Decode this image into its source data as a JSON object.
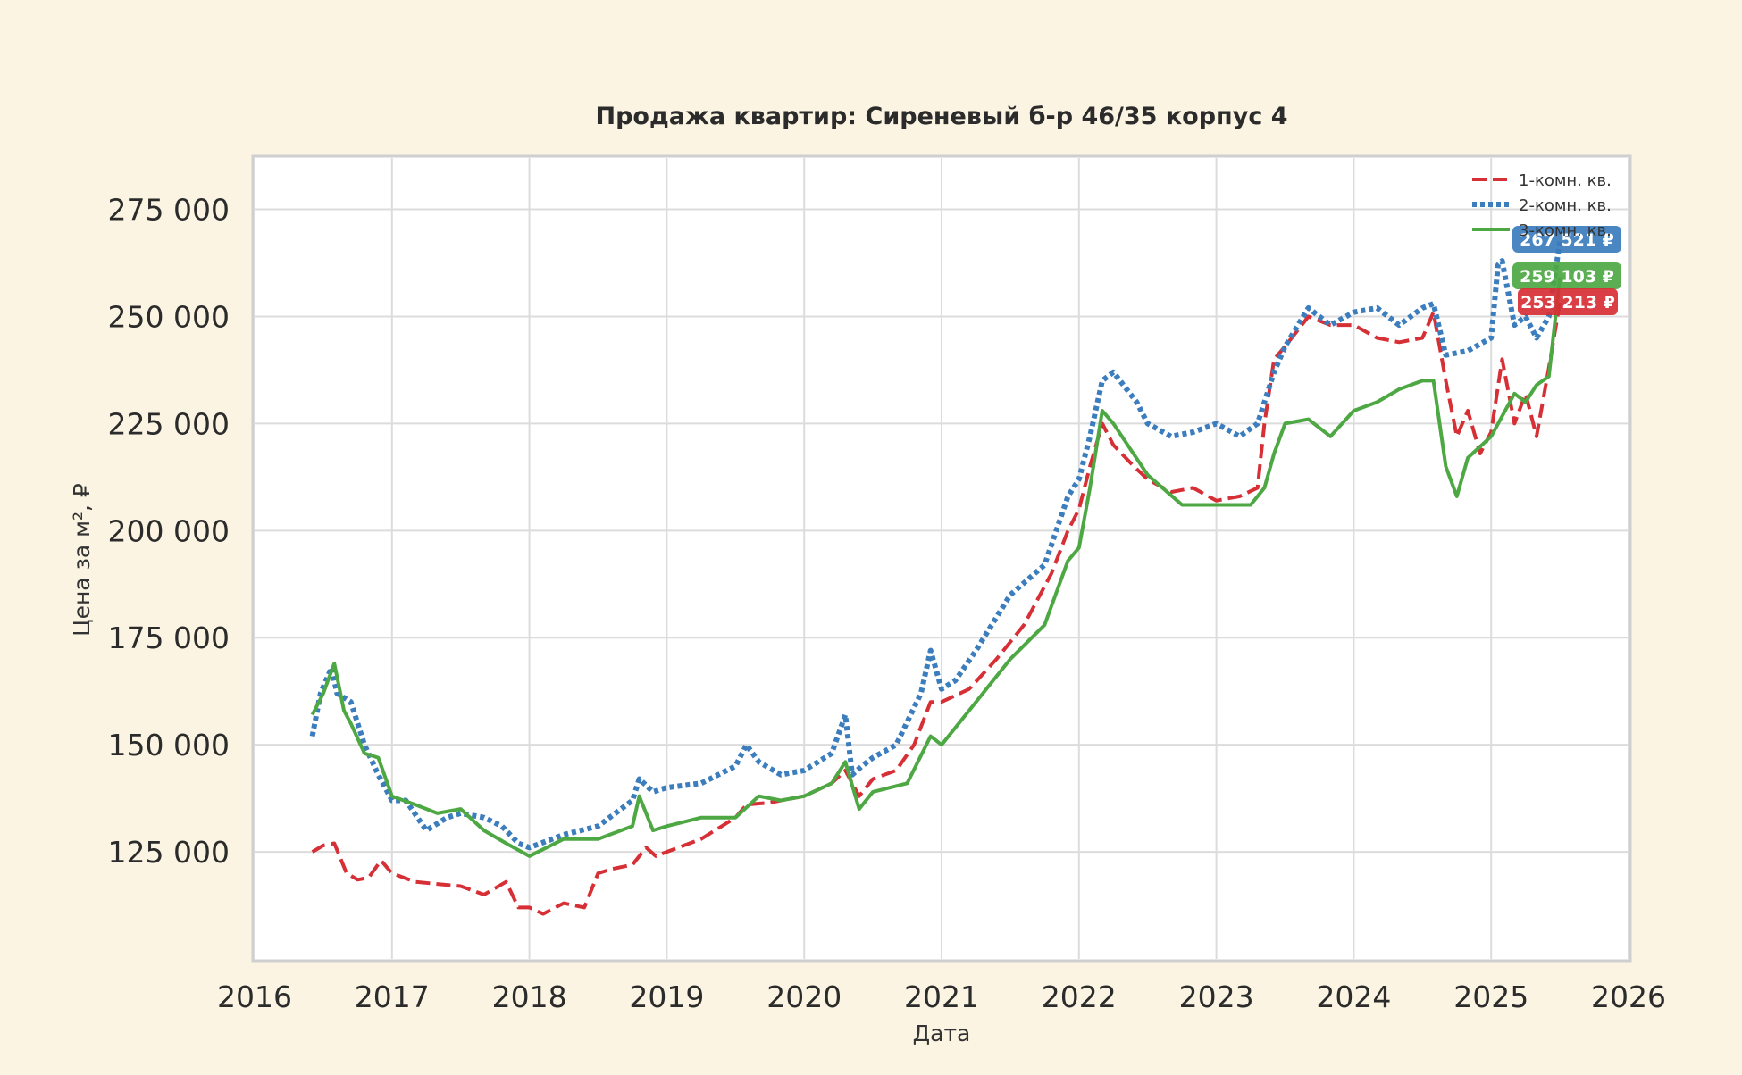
{
  "chart_data": {
    "type": "line",
    "title": "Продажа квартир: Сиреневый б-р 46/35 корпус 4",
    "xlabel": "Дата",
    "ylabel": "Цена за м², ₽",
    "xlim": [
      2016.0,
      2026.0
    ],
    "ylim": [
      100000,
      287000
    ],
    "x_ticks": [
      2016,
      2017,
      2018,
      2019,
      2020,
      2021,
      2022,
      2023,
      2024,
      2025,
      2026
    ],
    "x_tick_labels": [
      "2016",
      "2017",
      "2018",
      "2019",
      "2020",
      "2021",
      "2022",
      "2023",
      "2024",
      "2025",
      "2026"
    ],
    "y_ticks": [
      125000,
      150000,
      175000,
      200000,
      225000,
      250000,
      275000
    ],
    "y_tick_labels": [
      "125 000",
      "150 000",
      "175 000",
      "200 000",
      "225 000",
      "250 000",
      "275 000"
    ],
    "grid": true,
    "legend_position": "top-right",
    "series": [
      {
        "name": "1-комн. кв.",
        "color": "#d62f35",
        "style": "dashed",
        "last_value_label": "253 213 ₽",
        "x": [
          2016.42,
          2016.5,
          2016.58,
          2016.67,
          2016.75,
          2016.83,
          2016.92,
          2017.0,
          2017.17,
          2017.33,
          2017.5,
          2017.67,
          2017.83,
          2017.92,
          2018.0,
          2018.1,
          2018.25,
          2018.4,
          2018.5,
          2018.6,
          2018.75,
          2018.85,
          2018.92,
          2019.0,
          2019.25,
          2019.5,
          2019.58,
          2019.75,
          2020.0,
          2020.2,
          2020.3,
          2020.4,
          2020.5,
          2020.67,
          2020.8,
          2020.92,
          2021.0,
          2021.2,
          2021.4,
          2021.6,
          2021.8,
          2021.92,
          2022.0,
          2022.08,
          2022.17,
          2022.25,
          2022.4,
          2022.5,
          2022.67,
          2022.83,
          2023.0,
          2023.17,
          2023.3,
          2023.35,
          2023.42,
          2023.5,
          2023.67,
          2023.83,
          2024.0,
          2024.17,
          2024.33,
          2024.5,
          2024.58,
          2024.67,
          2024.75,
          2024.83,
          2024.92,
          2025.0,
          2025.08,
          2025.17,
          2025.25,
          2025.33,
          2025.42,
          2025.5
        ],
        "y": [
          125000,
          126500,
          127000,
          120000,
          118500,
          119000,
          123000,
          120000,
          118000,
          117500,
          117000,
          115000,
          118000,
          112000,
          112000,
          110500,
          113000,
          112000,
          120000,
          121000,
          122000,
          126000,
          124000,
          125000,
          128000,
          133000,
          136000,
          136500,
          138000,
          141000,
          144000,
          138000,
          142000,
          144000,
          150000,
          160000,
          160000,
          163000,
          170000,
          178000,
          190000,
          200000,
          205000,
          215000,
          225000,
          220000,
          215000,
          212000,
          209000,
          210000,
          207000,
          208000,
          210000,
          225000,
          240000,
          243000,
          250000,
          248000,
          248000,
          245000,
          244000,
          245000,
          251000,
          235000,
          222000,
          228000,
          218000,
          223000,
          240000,
          225000,
          232000,
          222000,
          238000,
          253213
        ]
      },
      {
        "name": "2-комн. кв.",
        "color": "#3b7dbd",
        "style": "dotted",
        "last_value_label": "267 521 ₽",
        "x": [
          2016.42,
          2016.48,
          2016.56,
          2016.6,
          2016.7,
          2016.8,
          2016.9,
          2017.0,
          2017.1,
          2017.25,
          2017.4,
          2017.5,
          2017.67,
          2017.8,
          2017.92,
          2018.0,
          2018.25,
          2018.5,
          2018.75,
          2018.8,
          2018.9,
          2019.0,
          2019.25,
          2019.5,
          2019.58,
          2019.67,
          2019.83,
          2020.0,
          2020.2,
          2020.3,
          2020.35,
          2020.42,
          2020.5,
          2020.67,
          2020.85,
          2020.92,
          2021.0,
          2021.1,
          2021.25,
          2021.5,
          2021.75,
          2021.92,
          2022.0,
          2022.08,
          2022.17,
          2022.25,
          2022.42,
          2022.5,
          2022.67,
          2022.83,
          2023.0,
          2023.17,
          2023.3,
          2023.42,
          2023.5,
          2023.67,
          2023.83,
          2024.0,
          2024.17,
          2024.33,
          2024.5,
          2024.58,
          2024.67,
          2024.83,
          2025.0,
          2025.05,
          2025.08,
          2025.17,
          2025.25,
          2025.33,
          2025.42,
          2025.5
        ],
        "y": [
          152000,
          162000,
          168000,
          162000,
          160000,
          150000,
          143000,
          137000,
          137000,
          130000,
          133000,
          134000,
          133000,
          131000,
          127000,
          126000,
          129000,
          131000,
          137000,
          142000,
          139000,
          140000,
          141000,
          145000,
          150000,
          146000,
          143000,
          144000,
          148000,
          157000,
          143000,
          145000,
          147000,
          150000,
          162000,
          172000,
          163000,
          165000,
          172000,
          185000,
          192000,
          208000,
          212000,
          222000,
          235000,
          237000,
          230000,
          225000,
          222000,
          223000,
          225000,
          222000,
          225000,
          237000,
          243000,
          252000,
          248000,
          251000,
          252000,
          248000,
          252000,
          253000,
          241000,
          242000,
          245000,
          262000,
          263000,
          248000,
          250000,
          245000,
          250000,
          267521
        ]
      },
      {
        "name": "3-комн. кв.",
        "color": "#4da843",
        "style": "solid",
        "last_value_label": "259 103 ₽",
        "x": [
          2016.42,
          2016.5,
          2016.58,
          2016.65,
          2016.7,
          2016.8,
          2016.9,
          2017.0,
          2017.17,
          2017.33,
          2017.5,
          2017.67,
          2017.83,
          2018.0,
          2018.25,
          2018.5,
          2018.75,
          2018.8,
          2018.9,
          2019.0,
          2019.25,
          2019.5,
          2019.67,
          2019.83,
          2020.0,
          2020.2,
          2020.3,
          2020.4,
          2020.5,
          2020.75,
          2020.92,
          2021.0,
          2021.25,
          2021.5,
          2021.75,
          2021.92,
          2022.0,
          2022.08,
          2022.17,
          2022.25,
          2022.5,
          2022.75,
          2023.0,
          2023.25,
          2023.35,
          2023.42,
          2023.5,
          2023.67,
          2023.83,
          2024.0,
          2024.17,
          2024.33,
          2024.5,
          2024.58,
          2024.67,
          2024.75,
          2024.83,
          2025.0,
          2025.17,
          2025.25,
          2025.33,
          2025.42,
          2025.5
        ],
        "y": [
          157000,
          162000,
          169000,
          158000,
          155000,
          148000,
          147000,
          138000,
          136000,
          134000,
          135000,
          130000,
          127000,
          124000,
          128000,
          128000,
          131000,
          138000,
          130000,
          131000,
          133000,
          133000,
          138000,
          137000,
          138000,
          141000,
          146000,
          135000,
          139000,
          141000,
          152000,
          150000,
          160000,
          170000,
          178000,
          193000,
          196000,
          210000,
          228000,
          225000,
          213000,
          206000,
          206000,
          206000,
          210000,
          218000,
          225000,
          226000,
          222000,
          228000,
          230000,
          233000,
          235000,
          235000,
          215000,
          208000,
          217000,
          222000,
          232000,
          230000,
          234000,
          236000,
          259103
        ]
      }
    ]
  }
}
